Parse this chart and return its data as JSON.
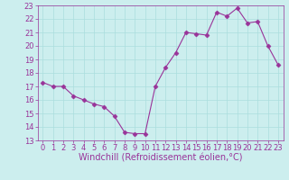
{
  "x": [
    0,
    1,
    2,
    3,
    4,
    5,
    6,
    7,
    8,
    9,
    10,
    11,
    12,
    13,
    14,
    15,
    16,
    17,
    18,
    19,
    20,
    21,
    22,
    23
  ],
  "y": [
    17.3,
    17.0,
    17.0,
    16.3,
    16.0,
    15.7,
    15.5,
    14.8,
    13.6,
    13.5,
    13.5,
    17.0,
    18.4,
    19.5,
    21.0,
    20.9,
    20.8,
    22.5,
    22.2,
    22.8,
    21.7,
    21.8,
    20.0,
    18.6
  ],
  "ylim": [
    13,
    23
  ],
  "xlim": [
    -0.5,
    23.5
  ],
  "yticks": [
    13,
    14,
    15,
    16,
    17,
    18,
    19,
    20,
    21,
    22,
    23
  ],
  "xticks": [
    0,
    1,
    2,
    3,
    4,
    5,
    6,
    7,
    8,
    9,
    10,
    11,
    12,
    13,
    14,
    15,
    16,
    17,
    18,
    19,
    20,
    21,
    22,
    23
  ],
  "line_color": "#993399",
  "marker": "D",
  "marker_size": 2.5,
  "bg_color": "#cceeee",
  "grid_color": "#aadddd",
  "xlabel": "Windchill (Refroidissement éolien,°C)",
  "xlabel_color": "#993399",
  "tick_color": "#993399",
  "label_fontsize": 7.0,
  "tick_fontsize": 6.0
}
